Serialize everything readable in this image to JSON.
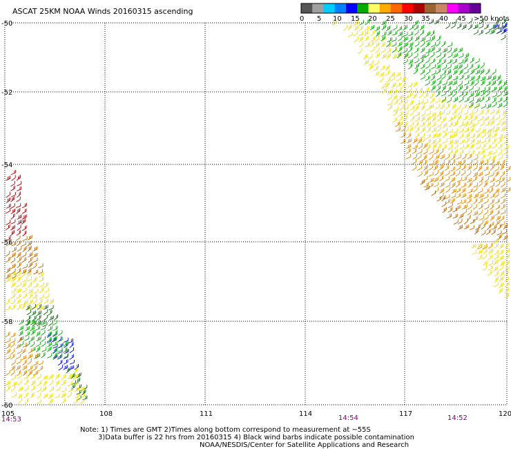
{
  "title": "ASCAT 25KM NOAA Winds 20160315 ascending",
  "legend": {
    "colors": [
      "#555555",
      "#a0a0a0",
      "#00ccff",
      "#0080ff",
      "#0000ff",
      "#00aa00",
      "#ffff66",
      "#ffaa00",
      "#ff6600",
      "#ff0000",
      "#aa0000",
      "#996633",
      "#cc8866",
      "#ff00ff",
      "#aa00cc",
      "#660099"
    ],
    "labels": [
      "0",
      "5",
      "10",
      "15",
      "20",
      "25",
      "30",
      "35",
      "40",
      "45",
      ">50 knots"
    ]
  },
  "axes": {
    "lon_ticks": [
      "108",
      "111",
      "114",
      "117",
      "120"
    ],
    "lon_start": "105",
    "lat_ticks": [
      "-50",
      "-52",
      "-54",
      "-56",
      "-58",
      "-60"
    ]
  },
  "time_labels": [
    "14:53",
    "14:54",
    "14:52"
  ],
  "notes": [
    "Note: 1) Times are GMT 2)Times along bottom correspond to measurement at ~55S",
    "3)Data buffer is 22 hrs from 20160315 4) Black wind barbs indicate possible contamination",
    "NOAA/NESDIS/Center for Satellite Applications and Research"
  ],
  "swath_colors": {
    "blue": "#0000ee",
    "dark_green": "#006600",
    "green": "#00aa00",
    "yellow": "#eedd00",
    "orange": "#dd8800",
    "brown": "#bb6600",
    "red": "#aa0000"
  }
}
